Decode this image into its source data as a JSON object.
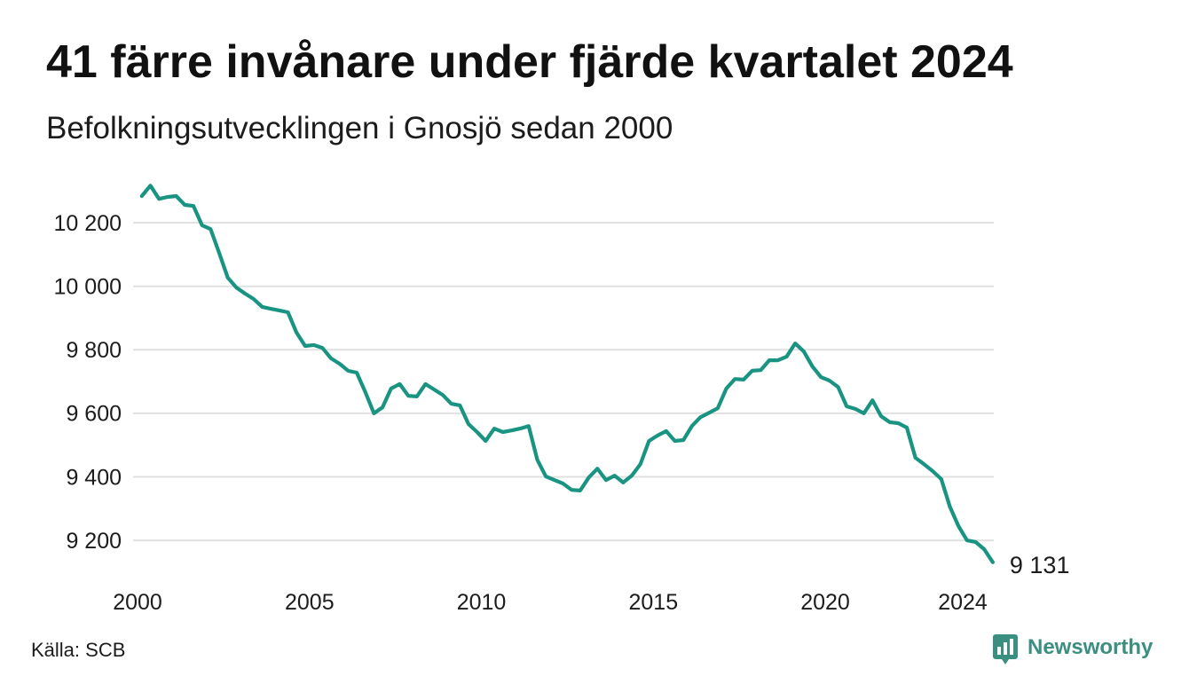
{
  "chart_data": {
    "type": "line",
    "title": "41 färre invånare under fjärde kvartalet 2024",
    "subtitle": "Befolkningsutvecklingen i Gnosjö sedan 2000",
    "x": [
      "2000K1",
      "2000K2",
      "2000K3",
      "2000K4",
      "2001K1",
      "2001K2",
      "2001K3",
      "2001K4",
      "2002K1",
      "2002K2",
      "2002K3",
      "2002K4",
      "2003K1",
      "2003K2",
      "2003K3",
      "2003K4",
      "2004K1",
      "2004K2",
      "2004K3",
      "2004K4",
      "2005K1",
      "2005K2",
      "2005K3",
      "2005K4",
      "2006K1",
      "2006K2",
      "2006K3",
      "2006K4",
      "2007K1",
      "2007K2",
      "2007K3",
      "2007K4",
      "2008K1",
      "2008K2",
      "2008K3",
      "2008K4",
      "2009K1",
      "2009K2",
      "2009K3",
      "2009K4",
      "2010K1",
      "2010K2",
      "2010K3",
      "2010K4",
      "2011K1",
      "2011K2",
      "2011K3",
      "2011K4",
      "2012K1",
      "2012K2",
      "2012K3",
      "2012K4",
      "2013K1",
      "2013K2",
      "2013K3",
      "2013K4",
      "2014K1",
      "2014K2",
      "2014K3",
      "2014K4",
      "2015K1",
      "2015K2",
      "2015K3",
      "2015K4",
      "2016K1",
      "2016K2",
      "2016K3",
      "2016K4",
      "2017K1",
      "2017K2",
      "2017K3",
      "2017K4",
      "2018K1",
      "2018K2",
      "2018K3",
      "2018K4",
      "2019K1",
      "2019K2",
      "2019K3",
      "2019K4",
      "2020K1",
      "2020K2",
      "2020K3",
      "2020K4",
      "2021K1",
      "2021K2",
      "2021K3",
      "2021K4",
      "2022K1",
      "2022K2",
      "2022K3",
      "2022K4",
      "2023K1",
      "2023K2",
      "2023K3",
      "2023K4",
      "2024K1",
      "2024K2",
      "2024K3",
      "2024K4"
    ],
    "series": [
      {
        "color": "#1a9482",
        "values": [
          10284,
          10317,
          10275,
          10281,
          10284,
          10256,
          10253,
          10192,
          10180,
          10105,
          10027,
          9996,
          9977,
          9960,
          9935,
          9929,
          9924,
          9918,
          9854,
          9812,
          9815,
          9806,
          9773,
          9756,
          9734,
          9728,
          9667,
          9600,
          9619,
          9678,
          9692,
          9655,
          9653,
          9692,
          9675,
          9658,
          9630,
          9625,
          9566,
          9541,
          9513,
          9552,
          9541,
          9546,
          9552,
          9560,
          9454,
          9401,
          9390,
          9379,
          9359,
          9357,
          9398,
          9426,
          9390,
          9404,
          9382,
          9404,
          9440,
          9513,
          9530,
          9544,
          9513,
          9516,
          9560,
          9588,
          9602,
          9616,
          9678,
          9708,
          9706,
          9734,
          9736,
          9767,
          9767,
          9778,
          9820,
          9795,
          9748,
          9714,
          9703,
          9683,
          9622,
          9614,
          9600,
          9641,
          9591,
          9572,
          9569,
          9555,
          9460,
          9440,
          9418,
          9393,
          9306,
          9245,
          9200,
          9195,
          9172,
          9131
        ]
      }
    ],
    "yticks": [
      9200,
      9400,
      9600,
      9800,
      10000,
      10200
    ],
    "ytick_labels": [
      "9 200",
      "9 400",
      "9 600",
      "9 800",
      "10 000",
      "10 200"
    ],
    "xticks": [
      "2000",
      "2005",
      "2010",
      "2015",
      "2020",
      "2024"
    ],
    "ylim": [
      9100,
      10330
    ],
    "grid": true,
    "grid_color": "#e1e1e1",
    "end_label": "9 131"
  },
  "source": "Källa: SCB",
  "brand": {
    "name": "Newsworthy",
    "color": "#3b8f80",
    "icon": "newsworthy-logo-icon"
  }
}
